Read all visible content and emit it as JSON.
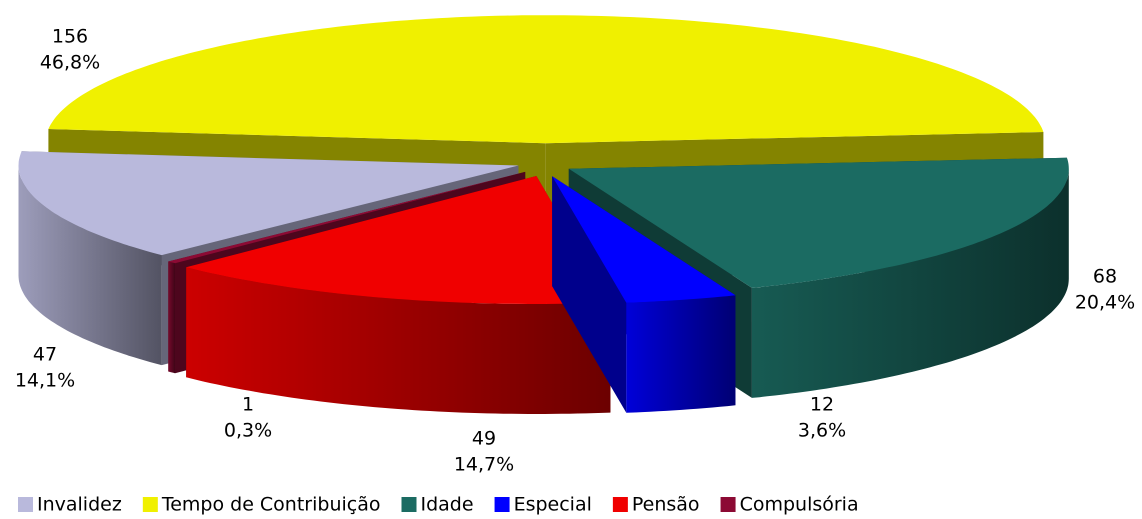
{
  "chart_data": {
    "type": "pie3d",
    "categories": [
      "Invalidez",
      "Tempo de Contribuição",
      "Idade",
      "Especial",
      "Pensão",
      "Compulsória"
    ],
    "values": [
      47,
      156,
      68,
      12,
      49,
      1
    ],
    "shares": [
      14.1,
      46.8,
      20.4,
      3.6,
      14.7,
      0.3
    ],
    "share_labels": [
      "14,1%",
      "46,8%",
      "20,4%",
      "3,6%",
      "14,7%",
      "0,3%"
    ],
    "colors": [
      "#b9b9dc",
      "#f0f000",
      "#1b6b62",
      "#0000ff",
      "#f00000",
      "#8c0a34"
    ],
    "legend": "bottom"
  }
}
